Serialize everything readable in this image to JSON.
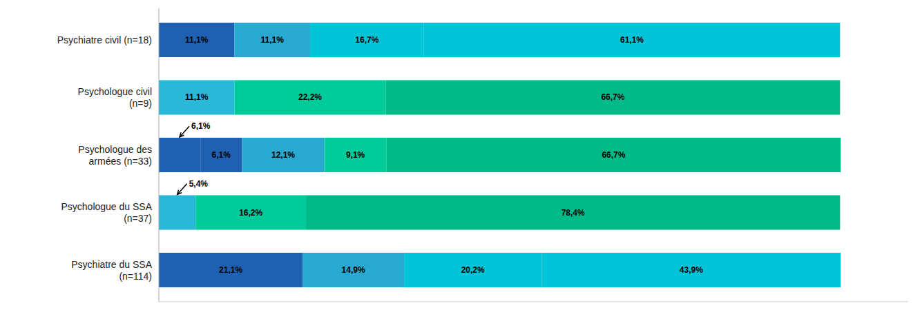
{
  "chart_data": {
    "type": "bar",
    "orientation": "horizontal",
    "stacked": true,
    "data_labels": true,
    "tick_labels": "y",
    "grid": false,
    "categories": [
      "Psychiatre civil (n=18)",
      "Psychologue civil\n(n=9)",
      "Psychologue des\narmées (n=33)",
      "Psychologue du SSA\n(n=37)",
      "Psychiatre du SSA\n(n=114)"
    ],
    "xlim": [
      0,
      110
    ],
    "series": [
      {
        "values": [
          11.1,
          11.1,
          6.1,
          5.4,
          21.1
        ],
        "colors": [
          "#2060b0",
          "#29b8d8",
          "#2060b0",
          "#29b8d8",
          "#2060b0"
        ],
        "value_labels": [
          "11,1%",
          "11,1%",
          null,
          null,
          "21,1%"
        ]
      },
      {
        "values": [
          11.1,
          22.2,
          6.1,
          16.2,
          14.9
        ],
        "colors": [
          "#29a8d0",
          "#00cc99",
          "#2060b0",
          "#00cc99",
          "#29a8d0"
        ],
        "value_labels": [
          "11,1%",
          "22,2%",
          "6,1%",
          "16,2%",
          "14,9%"
        ]
      },
      {
        "values": [
          16.7,
          66.7,
          12.1,
          78.4,
          20.2
        ],
        "colors": [
          "#00c4d8",
          "#00bb88",
          "#29a8d0",
          "#00bb88",
          "#00c4d8"
        ],
        "value_labels": [
          "16,7%",
          "66,7%",
          "12,1%",
          "78,4%",
          "20,2%"
        ]
      },
      {
        "values": [
          61.1,
          null,
          9.1,
          null,
          43.9
        ],
        "colors": [
          "#00c4d8",
          null,
          "#00cc99",
          null,
          "#00c4d8"
        ],
        "value_labels": [
          "61,1%",
          null,
          "9,1%",
          null,
          "43,9%"
        ]
      },
      {
        "values": [
          null,
          null,
          66.7,
          null,
          null
        ],
        "colors": [
          null,
          null,
          "#00bb88",
          null,
          null
        ],
        "value_labels": [
          null,
          null,
          "66,7%",
          null,
          null
        ]
      }
    ],
    "annotations": [
      {
        "text": "6,1%",
        "row": 2
      },
      {
        "text": "5,4%",
        "row": 3
      }
    ]
  }
}
